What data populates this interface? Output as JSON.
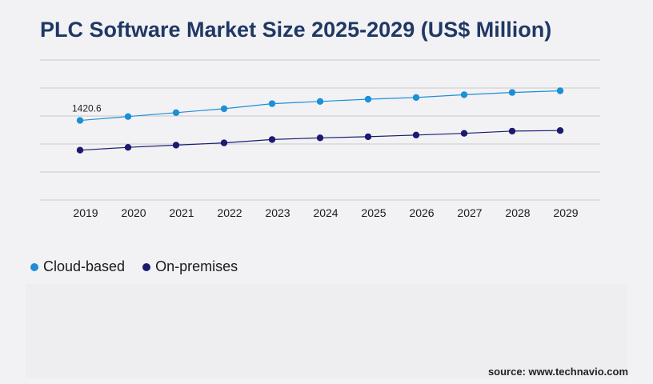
{
  "title": "PLC Software Market Size 2025-2029 (US$ Million)",
  "source": "source: www.technavio.com",
  "colors": {
    "cloud": "#1c8fd6",
    "onprem": "#1a1a6e",
    "title": "#1f3864",
    "grid": "#c8c8cc"
  },
  "chart_data": {
    "type": "line",
    "title": "PLC Software Market Size 2025-2029 (US$ Million)",
    "x": [
      "2019",
      "2020",
      "2021",
      "2022",
      "2023",
      "2024",
      "2025",
      "2026",
      "2027",
      "2028",
      "2029"
    ],
    "series": [
      {
        "name": "Cloud-based",
        "values": [
          1420.6,
          1490,
          1560,
          1630,
          1720,
          1760,
          1800,
          1830,
          1880,
          1920,
          1950
        ]
      },
      {
        "name": "On-premises",
        "values": [
          890,
          940,
          980,
          1020,
          1080,
          1110,
          1130,
          1160,
          1190,
          1230,
          1240
        ]
      }
    ],
    "annotations": [
      {
        "series": "Cloud-based",
        "x": "2019",
        "text": "1420.6"
      }
    ],
    "ylim": [
      0,
      2500
    ],
    "grid": true,
    "legend": "bottom-left",
    "xlabel": "",
    "ylabel": ""
  }
}
